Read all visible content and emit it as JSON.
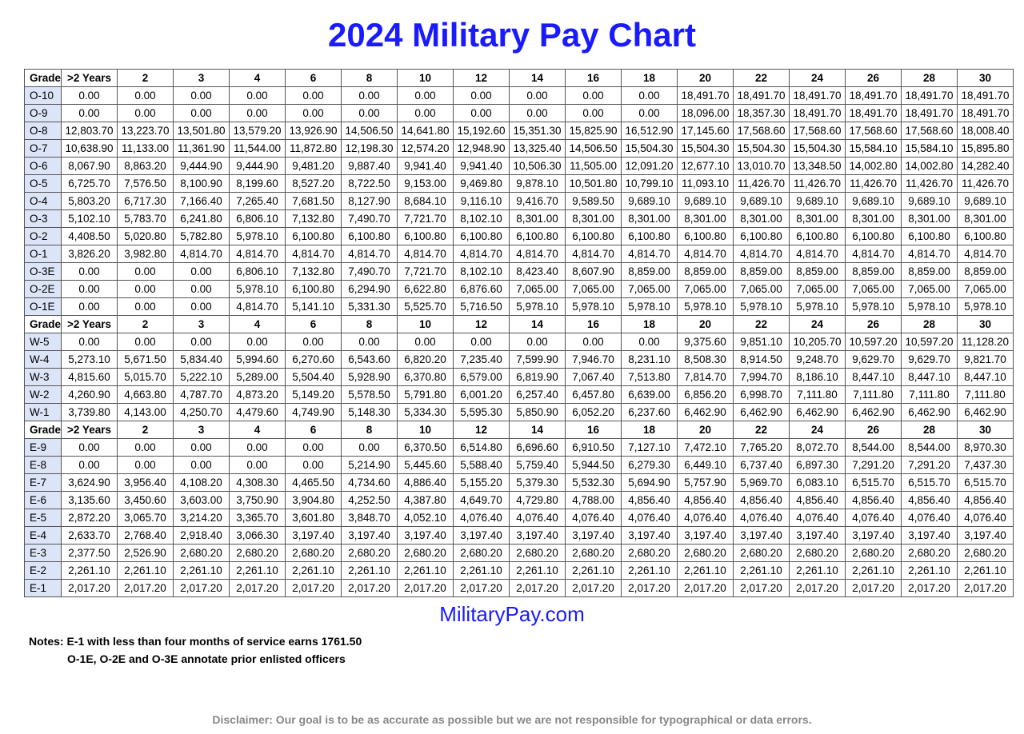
{
  "title": "2024 Military Pay Chart",
  "site": "MilitaryPay.com",
  "notes_label": "Notes:",
  "notes_line1": "E-1 with less than four months of service earns 1761.50",
  "notes_line2": "O-1E, O-2E and O-3E annotate prior enlisted officers",
  "disclaimer": "Disclaimer: Our goal is to be as accurate as possible but we are not responsible for typographical or data errors.",
  "colors": {
    "title": "#1a1aff",
    "grade_bg": "#dce4f7",
    "border": "#555555",
    "disclaimer": "#888888"
  },
  "columns": [
    "Grade",
    ">2 Years",
    "2",
    "3",
    "4",
    "6",
    "8",
    "10",
    "12",
    "14",
    "16",
    "18",
    "20",
    "22",
    "24",
    "26",
    "28",
    "30"
  ],
  "sections": [
    {
      "header": true,
      "rows": [
        {
          "grade": "O-10",
          "v": [
            "0.00",
            "0.00",
            "0.00",
            "0.00",
            "0.00",
            "0.00",
            "0.00",
            "0.00",
            "0.00",
            "0.00",
            "0.00",
            "18,491.70",
            "18,491.70",
            "18,491.70",
            "18,491.70",
            "18,491.70",
            "18,491.70"
          ]
        },
        {
          "grade": "O-9",
          "v": [
            "0.00",
            "0.00",
            "0.00",
            "0.00",
            "0.00",
            "0.00",
            "0.00",
            "0.00",
            "0.00",
            "0.00",
            "0.00",
            "18,096.00",
            "18,357.30",
            "18,491.70",
            "18,491.70",
            "18,491.70",
            "18,491.70"
          ]
        },
        {
          "grade": "O-8",
          "v": [
            "12,803.70",
            "13,223.70",
            "13,501.80",
            "13,579.20",
            "13,926.90",
            "14,506.50",
            "14,641.80",
            "15,192.60",
            "15,351.30",
            "15,825.90",
            "16,512.90",
            "17,145.60",
            "17,568.60",
            "17,568.60",
            "17,568.60",
            "17,568.60",
            "18,008.40"
          ]
        },
        {
          "grade": "O-7",
          "v": [
            "10,638.90",
            "11,133.00",
            "11,361.90",
            "11,544.00",
            "11,872.80",
            "12,198.30",
            "12,574.20",
            "12,948.90",
            "13,325.40",
            "14,506.50",
            "15,504.30",
            "15,504.30",
            "15,504.30",
            "15,504.30",
            "15,584.10",
            "15,584.10",
            "15,895.80"
          ]
        },
        {
          "grade": "O-6",
          "v": [
            "8,067.90",
            "8,863.20",
            "9,444.90",
            "9,444.90",
            "9,481.20",
            "9,887.40",
            "9,941.40",
            "9,941.40",
            "10,506.30",
            "11,505.00",
            "12,091.20",
            "12,677.10",
            "13,010.70",
            "13,348.50",
            "14,002.80",
            "14,002.80",
            "14,282.40"
          ]
        },
        {
          "grade": "O-5",
          "v": [
            "6,725.70",
            "7,576.50",
            "8,100.90",
            "8,199.60",
            "8,527.20",
            "8,722.50",
            "9,153.00",
            "9,469.80",
            "9,878.10",
            "10,501.80",
            "10,799.10",
            "11,093.10",
            "11,426.70",
            "11,426.70",
            "11,426.70",
            "11,426.70",
            "11,426.70"
          ]
        },
        {
          "grade": "O-4",
          "v": [
            "5,803.20",
            "6,717.30",
            "7,166.40",
            "7,265.40",
            "7,681.50",
            "8,127.90",
            "8,684.10",
            "9,116.10",
            "9,416.70",
            "9,589.50",
            "9,689.10",
            "9,689.10",
            "9,689.10",
            "9,689.10",
            "9,689.10",
            "9,689.10",
            "9,689.10"
          ]
        },
        {
          "grade": "O-3",
          "v": [
            "5,102.10",
            "5,783.70",
            "6,241.80",
            "6,806.10",
            "7,132.80",
            "7,490.70",
            "7,721.70",
            "8,102.10",
            "8,301.00",
            "8,301.00",
            "8,301.00",
            "8,301.00",
            "8,301.00",
            "8,301.00",
            "8,301.00",
            "8,301.00",
            "8,301.00"
          ]
        },
        {
          "grade": "O-2",
          "v": [
            "4,408.50",
            "5,020.80",
            "5,782.80",
            "5,978.10",
            "6,100.80",
            "6,100.80",
            "6,100.80",
            "6,100.80",
            "6,100.80",
            "6,100.80",
            "6,100.80",
            "6,100.80",
            "6,100.80",
            "6,100.80",
            "6,100.80",
            "6,100.80",
            "6,100.80"
          ]
        },
        {
          "grade": "O-1",
          "v": [
            "3,826.20",
            "3,982.80",
            "4,814.70",
            "4,814.70",
            "4,814.70",
            "4,814.70",
            "4,814.70",
            "4,814.70",
            "4,814.70",
            "4,814.70",
            "4,814.70",
            "4,814.70",
            "4,814.70",
            "4,814.70",
            "4,814.70",
            "4,814.70",
            "4,814.70"
          ]
        },
        {
          "grade": "O-3E",
          "v": [
            "0.00",
            "0.00",
            "0.00",
            "6,806.10",
            "7,132.80",
            "7,490.70",
            "7,721.70",
            "8,102.10",
            "8,423.40",
            "8,607.90",
            "8,859.00",
            "8,859.00",
            "8,859.00",
            "8,859.00",
            "8,859.00",
            "8,859.00",
            "8,859.00"
          ]
        },
        {
          "grade": "O-2E",
          "v": [
            "0.00",
            "0.00",
            "0.00",
            "5,978.10",
            "6,100.80",
            "6,294.90",
            "6,622.80",
            "6,876.60",
            "7,065.00",
            "7,065.00",
            "7,065.00",
            "7,065.00",
            "7,065.00",
            "7,065.00",
            "7,065.00",
            "7,065.00",
            "7,065.00"
          ]
        },
        {
          "grade": "O-1E",
          "v": [
            "0.00",
            "0.00",
            "0.00",
            "4,814.70",
            "5,141.10",
            "5,331.30",
            "5,525.70",
            "5,716.50",
            "5,978.10",
            "5,978.10",
            "5,978.10",
            "5,978.10",
            "5,978.10",
            "5,978.10",
            "5,978.10",
            "5,978.10",
            "5,978.10"
          ]
        }
      ]
    },
    {
      "header": true,
      "rows": [
        {
          "grade": "W-5",
          "v": [
            "0.00",
            "0.00",
            "0.00",
            "0.00",
            "0.00",
            "0.00",
            "0.00",
            "0.00",
            "0.00",
            "0.00",
            "0.00",
            "9,375.60",
            "9,851.10",
            "10,205.70",
            "10,597.20",
            "10,597.20",
            "11,128.20"
          ]
        },
        {
          "grade": "W-4",
          "v": [
            "5,273.10",
            "5,671.50",
            "5,834.40",
            "5,994.60",
            "6,270.60",
            "6,543.60",
            "6,820.20",
            "7,235.40",
            "7,599.90",
            "7,946.70",
            "8,231.10",
            "8,508.30",
            "8,914.50",
            "9,248.70",
            "9,629.70",
            "9,629.70",
            "9,821.70"
          ]
        },
        {
          "grade": "W-3",
          "v": [
            "4,815.60",
            "5,015.70",
            "5,222.10",
            "5,289.00",
            "5,504.40",
            "5,928.90",
            "6,370.80",
            "6,579.00",
            "6,819.90",
            "7,067.40",
            "7,513.80",
            "7,814.70",
            "7,994.70",
            "8,186.10",
            "8,447.10",
            "8,447.10",
            "8,447.10"
          ]
        },
        {
          "grade": "W-2",
          "v": [
            "4,260.90",
            "4,663.80",
            "4,787.70",
            "4,873.20",
            "5,149.20",
            "5,578.50",
            "5,791.80",
            "6,001.20",
            "6,257.40",
            "6,457.80",
            "6,639.00",
            "6,856.20",
            "6,998.70",
            "7,111.80",
            "7,111.80",
            "7,111.80",
            "7,111.80"
          ]
        },
        {
          "grade": "W-1",
          "v": [
            "3,739.80",
            "4,143.00",
            "4,250.70",
            "4,479.60",
            "4,749.90",
            "5,148.30",
            "5,334.30",
            "5,595.30",
            "5,850.90",
            "6,052.20",
            "6,237.60",
            "6,462.90",
            "6,462.90",
            "6,462.90",
            "6,462.90",
            "6,462.90",
            "6,462.90"
          ]
        }
      ]
    },
    {
      "header": true,
      "rows": [
        {
          "grade": "E-9",
          "v": [
            "0.00",
            "0.00",
            "0.00",
            "0.00",
            "0.00",
            "0.00",
            "6,370.50",
            "6,514.80",
            "6,696.60",
            "6,910.50",
            "7,127.10",
            "7,472.10",
            "7,765.20",
            "8,072.70",
            "8,544.00",
            "8,544.00",
            "8,970.30"
          ]
        },
        {
          "grade": "E-8",
          "v": [
            "0.00",
            "0.00",
            "0.00",
            "0.00",
            "0.00",
            "5,214.90",
            "5,445.60",
            "5,588.40",
            "5,759.40",
            "5,944.50",
            "6,279.30",
            "6,449.10",
            "6,737.40",
            "6,897.30",
            "7,291.20",
            "7,291.20",
            "7,437.30"
          ]
        },
        {
          "grade": "E-7",
          "v": [
            "3,624.90",
            "3,956.40",
            "4,108.20",
            "4,308.30",
            "4,465.50",
            "4,734.60",
            "4,886.40",
            "5,155.20",
            "5,379.30",
            "5,532.30",
            "5,694.90",
            "5,757.90",
            "5,969.70",
            "6,083.10",
            "6,515.70",
            "6,515.70",
            "6,515.70"
          ]
        },
        {
          "grade": "E-6",
          "v": [
            "3,135.60",
            "3,450.60",
            "3,603.00",
            "3,750.90",
            "3,904.80",
            "4,252.50",
            "4,387.80",
            "4,649.70",
            "4,729.80",
            "4,788.00",
            "4,856.40",
            "4,856.40",
            "4,856.40",
            "4,856.40",
            "4,856.40",
            "4,856.40",
            "4,856.40"
          ]
        },
        {
          "grade": "E-5",
          "v": [
            "2,872.20",
            "3,065.70",
            "3,214.20",
            "3,365.70",
            "3,601.80",
            "3,848.70",
            "4,052.10",
            "4,076.40",
            "4,076.40",
            "4,076.40",
            "4,076.40",
            "4,076.40",
            "4,076.40",
            "4,076.40",
            "4,076.40",
            "4,076.40",
            "4,076.40"
          ]
        },
        {
          "grade": "E-4",
          "v": [
            "2,633.70",
            "2,768.40",
            "2,918.40",
            "3,066.30",
            "3,197.40",
            "3,197.40",
            "3,197.40",
            "3,197.40",
            "3,197.40",
            "3,197.40",
            "3,197.40",
            "3,197.40",
            "3,197.40",
            "3,197.40",
            "3,197.40",
            "3,197.40",
            "3,197.40"
          ]
        },
        {
          "grade": "E-3",
          "v": [
            "2,377.50",
            "2,526.90",
            "2,680.20",
            "2,680.20",
            "2,680.20",
            "2,680.20",
            "2,680.20",
            "2,680.20",
            "2,680.20",
            "2,680.20",
            "2,680.20",
            "2,680.20",
            "2,680.20",
            "2,680.20",
            "2,680.20",
            "2,680.20",
            "2,680.20"
          ]
        },
        {
          "grade": "E-2",
          "v": [
            "2,261.10",
            "2,261.10",
            "2,261.10",
            "2,261.10",
            "2,261.10",
            "2,261.10",
            "2,261.10",
            "2,261.10",
            "2,261.10",
            "2,261.10",
            "2,261.10",
            "2,261.10",
            "2,261.10",
            "2,261.10",
            "2,261.10",
            "2,261.10",
            "2,261.10"
          ]
        },
        {
          "grade": "E-1",
          "v": [
            "2,017.20",
            "2,017.20",
            "2,017.20",
            "2,017.20",
            "2,017.20",
            "2,017.20",
            "2,017.20",
            "2,017.20",
            "2,017.20",
            "2,017.20",
            "2,017.20",
            "2,017.20",
            "2,017.20",
            "2,017.20",
            "2,017.20",
            "2,017.20",
            "2,017.20"
          ]
        }
      ]
    }
  ]
}
